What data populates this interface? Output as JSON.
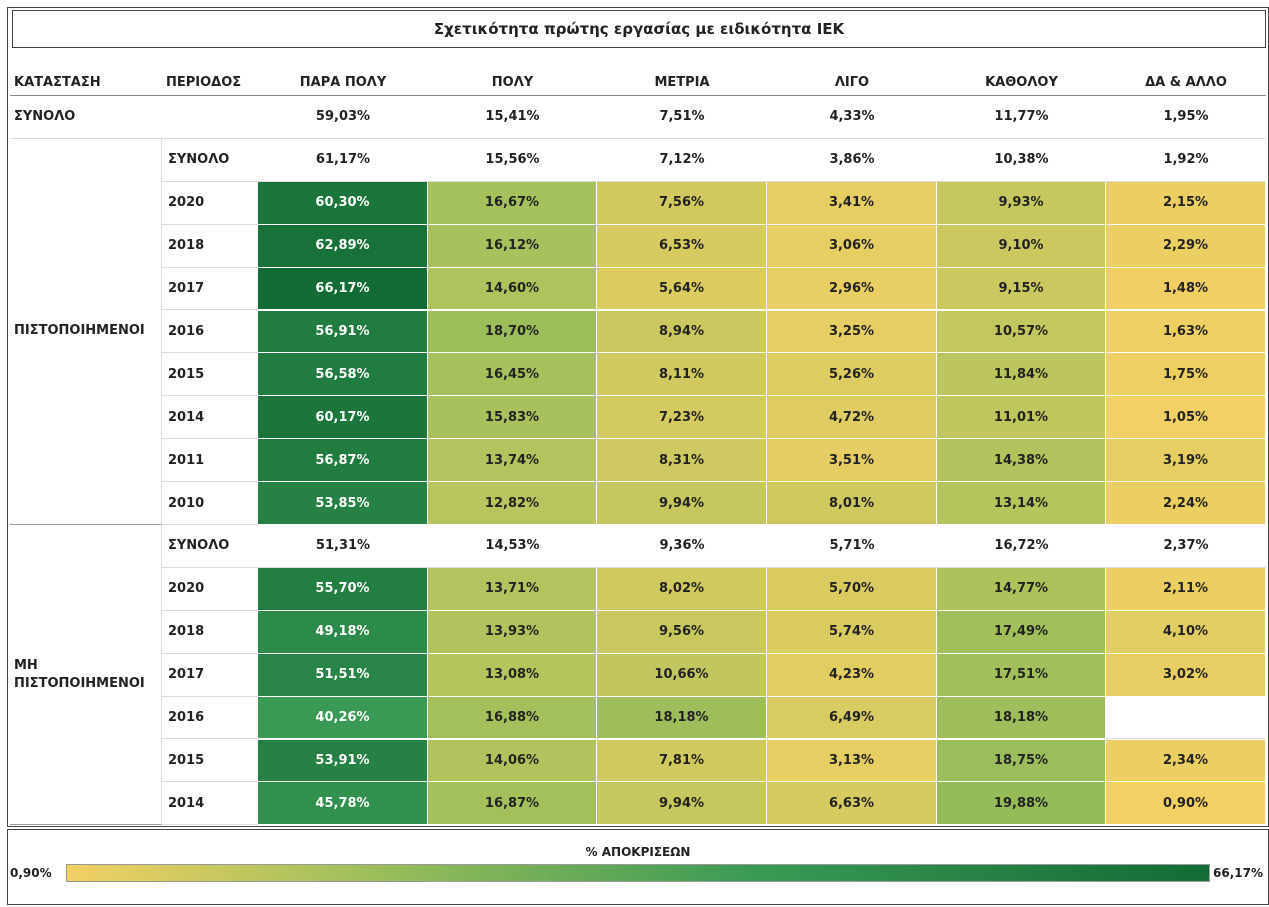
{
  "title": "Σχετικότητα πρώτης εργασίας με ειδικότητα ΙΕΚ",
  "table": {
    "columns": [
      "ΚΑΤΑΣΤΑΣΗ",
      "ΠΕΡΙΟΔΟΣ",
      "ΠΑΡΑ ΠΟΛΥ",
      "ΠΟΛΥ",
      "ΜΕΤΡΙΑ",
      "ΛΙΓΟ",
      "ΚΑΘΟΛΟΥ",
      "ΔΑ & ΑΛΛΟ"
    ],
    "total": {
      "label": "ΣΥΝΟΛΟ",
      "cells": [
        "59,03%",
        "15,41%",
        "7,51%",
        "4,33%",
        "11,77%",
        "1,95%"
      ]
    },
    "groups": [
      {
        "label": "ΠΙΣΤΟΠΟΙΗΜΕΝΟΙ",
        "rows": [
          {
            "period": "ΣΥΝΟΛΟ",
            "cells": [
              "61,17%",
              "15,56%",
              "7,12%",
              "3,86%",
              "10,38%",
              "1,92%"
            ]
          },
          {
            "period": "2020",
            "cells": [
              "60,30%",
              "16,67%",
              "7,56%",
              "3,41%",
              "9,93%",
              "2,15%"
            ]
          },
          {
            "period": "2018",
            "cells": [
              "62,89%",
              "16,12%",
              "6,53%",
              "3,06%",
              "9,10%",
              "2,29%"
            ]
          },
          {
            "period": "2017",
            "cells": [
              "66,17%",
              "14,60%",
              "5,64%",
              "2,96%",
              "9,15%",
              "1,48%"
            ]
          },
          {
            "period": "2016",
            "cells": [
              "56,91%",
              "18,70%",
              "8,94%",
              "3,25%",
              "10,57%",
              "1,63%"
            ]
          },
          {
            "period": "2015",
            "cells": [
              "56,58%",
              "16,45%",
              "8,11%",
              "5,26%",
              "11,84%",
              "1,75%"
            ]
          },
          {
            "period": "2014",
            "cells": [
              "60,17%",
              "15,83%",
              "7,23%",
              "4,72%",
              "11,01%",
              "1,05%"
            ]
          },
          {
            "period": "2011",
            "cells": [
              "56,87%",
              "13,74%",
              "8,31%",
              "3,51%",
              "14,38%",
              "3,19%"
            ]
          },
          {
            "period": "2010",
            "cells": [
              "53,85%",
              "12,82%",
              "9,94%",
              "8,01%",
              "13,14%",
              "2,24%"
            ]
          }
        ]
      },
      {
        "label": "ΜΗ ΠΙΣΤΟΠΟΙΗΜΕΝΟΙ",
        "rows": [
          {
            "period": "ΣΥΝΟΛΟ",
            "cells": [
              "51,31%",
              "14,53%",
              "9,36%",
              "5,71%",
              "16,72%",
              "2,37%"
            ]
          },
          {
            "period": "2020",
            "cells": [
              "55,70%",
              "13,71%",
              "8,02%",
              "5,70%",
              "14,77%",
              "2,11%"
            ]
          },
          {
            "period": "2018",
            "cells": [
              "49,18%",
              "13,93%",
              "9,56%",
              "5,74%",
              "17,49%",
              "4,10%"
            ]
          },
          {
            "period": "2017",
            "cells": [
              "51,51%",
              "13,08%",
              "10,66%",
              "4,23%",
              "17,51%",
              "3,02%"
            ]
          },
          {
            "period": "2016",
            "cells": [
              "40,26%",
              "16,88%",
              "18,18%",
              "6,49%",
              "18,18%",
              null
            ]
          },
          {
            "period": "2015",
            "cells": [
              "53,91%",
              "14,06%",
              "7,81%",
              "3,13%",
              "18,75%",
              "2,34%"
            ]
          },
          {
            "period": "2014",
            "cells": [
              "45,78%",
              "16,87%",
              "9,94%",
              "6,63%",
              "19,88%",
              "0,90%"
            ]
          }
        ]
      }
    ]
  },
  "legend": {
    "title": "% ΑΠΟΚΡΙΣΕΩΝ",
    "min": "0,90%",
    "max": "66,17%"
  }
}
